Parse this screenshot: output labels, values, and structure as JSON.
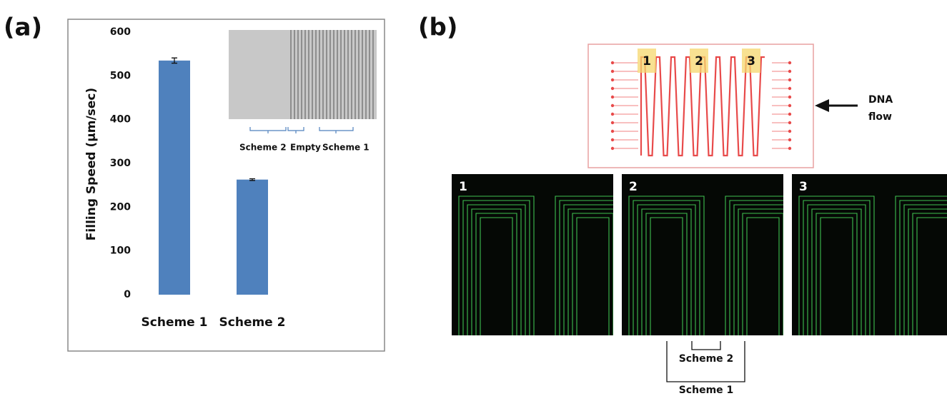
{
  "panel_a": {
    "label": "(a)",
    "inset_labels": [
      "Scheme 2",
      "Empty",
      "Scheme 1"
    ]
  },
  "chart_data": {
    "type": "bar",
    "y_label": "Filling Speed (µm/sec)",
    "categories": [
      "Scheme 1",
      "Scheme 2"
    ],
    "values": [
      535,
      263
    ],
    "errors": [
      6,
      2
    ],
    "color": "#4f81bd",
    "ylim": [
      0,
      600
    ],
    "yticks": [
      0,
      100,
      200,
      300,
      400,
      500,
      600
    ],
    "grid": false
  },
  "panel_b": {
    "label": "(b)",
    "channel_labels": [
      "1",
      "2",
      "3"
    ],
    "flow_label": [
      "DNA",
      "flow"
    ],
    "image_labels": [
      "1",
      "2",
      "3"
    ],
    "bracket_labels": [
      "Scheme 2",
      "Scheme 1"
    ]
  }
}
